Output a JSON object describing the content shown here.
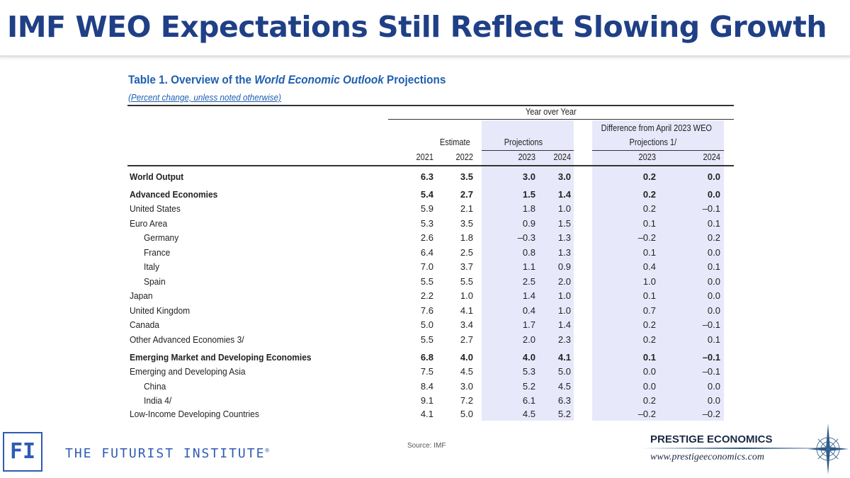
{
  "slide_title": "IMF WEO Expectations Still Reflect Slowing Growth",
  "table": {
    "title_prefix": "Table 1. Overview of the ",
    "title_italic": "World Economic Outlook",
    "title_suffix": " Projections",
    "subtitle": "(Percent change, unless noted otherwise)",
    "header_top": "Year over Year",
    "estimate": "Estimate",
    "projections": "Projections",
    "difference": "Difference from April 2023 WEO",
    "difference2": "Projections 1/",
    "years": [
      "2021",
      "2022",
      "2023",
      "2024",
      "2023",
      "2024"
    ],
    "rows": [
      {
        "label": "World Output",
        "bold": true,
        "indent": 0,
        "values": [
          "6.3",
          "3.5",
          "3.0",
          "3.0",
          "0.2",
          "0.0"
        ]
      },
      {
        "label": "Advanced Economies",
        "bold": true,
        "indent": 0,
        "values": [
          "5.4",
          "2.7",
          "1.5",
          "1.4",
          "0.2",
          "0.0"
        ]
      },
      {
        "label": "United States",
        "indent": 0,
        "values": [
          "5.9",
          "2.1",
          "1.8",
          "1.0",
          "0.2",
          "–0.1"
        ]
      },
      {
        "label": "Euro Area",
        "indent": 0,
        "values": [
          "5.3",
          "3.5",
          "0.9",
          "1.5",
          "0.1",
          "0.1"
        ]
      },
      {
        "label": "Germany",
        "indent": 1,
        "values": [
          "2.6",
          "1.8",
          "–0.3",
          "1.3",
          "–0.2",
          "0.2"
        ]
      },
      {
        "label": "France",
        "indent": 1,
        "values": [
          "6.4",
          "2.5",
          "0.8",
          "1.3",
          "0.1",
          "0.0"
        ]
      },
      {
        "label": "Italy",
        "indent": 1,
        "values": [
          "7.0",
          "3.7",
          "1.1",
          "0.9",
          "0.4",
          "0.1"
        ]
      },
      {
        "label": "Spain",
        "indent": 1,
        "values": [
          "5.5",
          "5.5",
          "2.5",
          "2.0",
          "1.0",
          "0.0"
        ]
      },
      {
        "label": "Japan",
        "indent": 0,
        "values": [
          "2.2",
          "1.0",
          "1.4",
          "1.0",
          "0.1",
          "0.0"
        ]
      },
      {
        "label": "United Kingdom",
        "indent": 0,
        "values": [
          "7.6",
          "4.1",
          "0.4",
          "1.0",
          "0.7",
          "0.0"
        ]
      },
      {
        "label": "Canada",
        "indent": 0,
        "values": [
          "5.0",
          "3.4",
          "1.7",
          "1.4",
          "0.2",
          "–0.1"
        ]
      },
      {
        "label": "Other Advanced Economies 3/",
        "indent": 0,
        "values": [
          "5.5",
          "2.7",
          "2.0",
          "2.3",
          "0.2",
          "0.1"
        ]
      },
      {
        "label": "Emerging Market and Developing Economies",
        "bold": true,
        "indent": 0,
        "values": [
          "6.8",
          "4.0",
          "4.0",
          "4.1",
          "0.1",
          "–0.1"
        ]
      },
      {
        "label": "Emerging and Developing Asia",
        "indent": 0,
        "values": [
          "7.5",
          "4.5",
          "5.3",
          "5.0",
          "0.0",
          "–0.1"
        ]
      },
      {
        "label": "China",
        "indent": 1,
        "values": [
          "8.4",
          "3.0",
          "5.2",
          "4.5",
          "0.0",
          "0.0"
        ]
      },
      {
        "label": "India 4/",
        "indent": 1,
        "values": [
          "9.1",
          "7.2",
          "6.1",
          "6.3",
          "0.2",
          "0.0"
        ]
      },
      {
        "label": "Low-Income Developing Countries",
        "indent": 0,
        "values": [
          "4.1",
          "5.0",
          "4.5",
          "5.2",
          "–0.2",
          "–0.2"
        ]
      }
    ]
  },
  "source": "Source: IMF",
  "footer": {
    "fi_logo": "FI",
    "fi_name": "THE FUTURIST INSTITUTE",
    "fi_reg": "®",
    "prestige_name": "PRESTIGE ECONOMICS",
    "prestige_url": "www.prestigeeconomics.com"
  },
  "colors": {
    "title": "#1f3f86",
    "table_title": "#1f5fb0",
    "shade": "#e8e8fb"
  }
}
